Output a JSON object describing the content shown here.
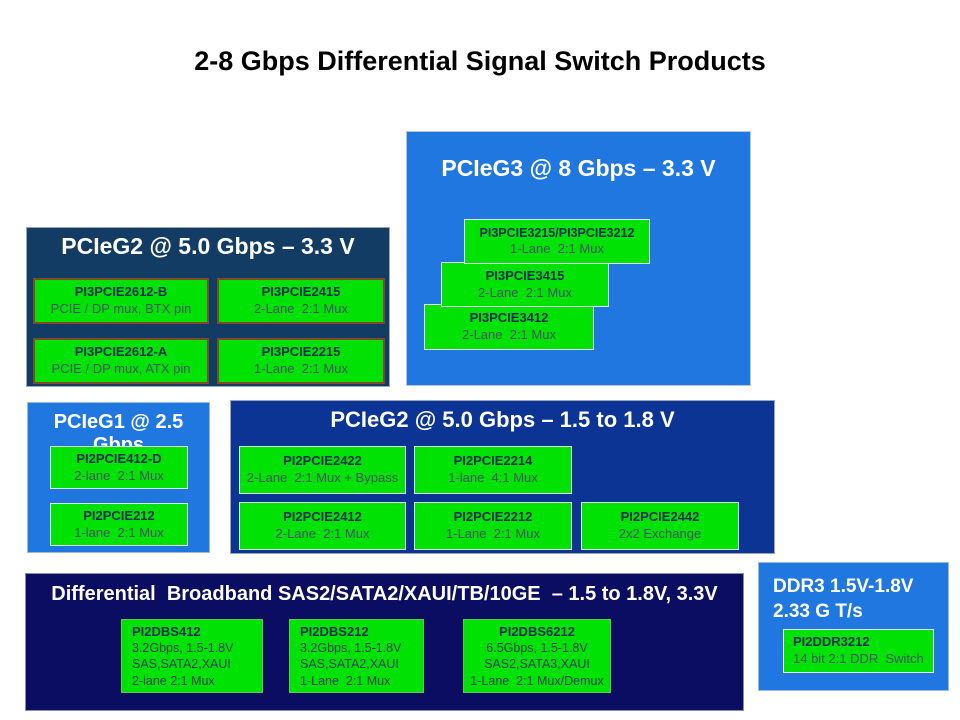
{
  "title": "2-8 Gbps Differential Signal Switch Products",
  "colors": {
    "bright_blue": "#2177e0",
    "teal_navy": "#123c63",
    "royal_navy": "#0c3494",
    "dark_navy": "#0b0d62",
    "product_green": "#00e104"
  },
  "sections": {
    "pcieg3": {
      "header": "PCIeG3 @ 8 Gbps – 3.3 V",
      "products": [
        {
          "name": "PI3PCIE3215/PI3PCIE3212",
          "desc": "1-Lane  2:1 Mux"
        },
        {
          "name": "PI3PCIE3415",
          "desc": "2-Lane  2:1 Mux"
        },
        {
          "name": "PI3PCIE3412",
          "desc": "2-Lane  2:1 Mux"
        }
      ]
    },
    "pcieg2_33": {
      "header": "PCIeG2 @ 5.0 Gbps – 3.3 V",
      "products": [
        {
          "name": "PI3PCIE2612-B",
          "desc": "PCIE / DP mux, BTX pin"
        },
        {
          "name": "PI3PCIE2415",
          "desc": "2-Lane  2:1 Mux"
        },
        {
          "name": "PI3PCIE2612-A",
          "desc": "PCIE / DP mux, ATX pin"
        },
        {
          "name": "PI3PCIE2215",
          "desc": "1-Lane  2:1 Mux"
        }
      ]
    },
    "pcieg1": {
      "header": "PCIeG1 @ 2.5 Gbps",
      "products": [
        {
          "name": "PI2PCIE412-D",
          "desc": "2-lane  2:1 Mux"
        },
        {
          "name": "PI2PCIE212",
          "desc": "1-lane  2:1 Mux"
        }
      ]
    },
    "pcieg2_15": {
      "header": "PCIeG2 @ 5.0 Gbps – 1.5 to 1.8 V",
      "row1": [
        {
          "name": "PI2PCIE2422",
          "desc": "2-Lane  2:1 Mux + Bypass"
        },
        {
          "name": "PI2PCIE2214",
          "desc": "1-lane  4:1 Mux"
        }
      ],
      "row2": [
        {
          "name": "PI2PCIE2412",
          "desc": "2-Lane  2:1 Mux"
        },
        {
          "name": "PI2PCIE2212",
          "desc": "1-Lane  2:1 Mux"
        },
        {
          "name": "PI2PCIE2442",
          "desc": "2x2 Exchange"
        }
      ]
    },
    "diff_bb": {
      "header": "Differential  Broadband SAS2/SATA2/XAUI/TB/10GE  – 1.5 to 1.8V, 3.3V",
      "products": [
        {
          "name": "PI2DBS412",
          "lines": [
            "3.2Gbps, 1.5-1.8V",
            "SAS,SATA2,XAUI",
            "2-lane 2:1 Mux"
          ]
        },
        {
          "name": "PI2DBS212",
          "lines": [
            "3.2Gbps, 1.5-1.8V",
            "SAS,SATA2,XAUI",
            "1-Lane  2:1 Mux"
          ]
        },
        {
          "name": "PI2DBS6212",
          "lines": [
            "6.5Gbps, 1.5-1.8V",
            "SAS2,SATA3,XAUI",
            "1-Lane  2:1 Mux/Demux"
          ]
        }
      ]
    },
    "ddr3": {
      "header_line1": "DDR3 1.5V-1.8V",
      "header_line2": "2.33 G T/s",
      "product": {
        "name": "PI2DDR3212",
        "desc": "14 bit 2:1 DDR  Switch"
      }
    }
  }
}
